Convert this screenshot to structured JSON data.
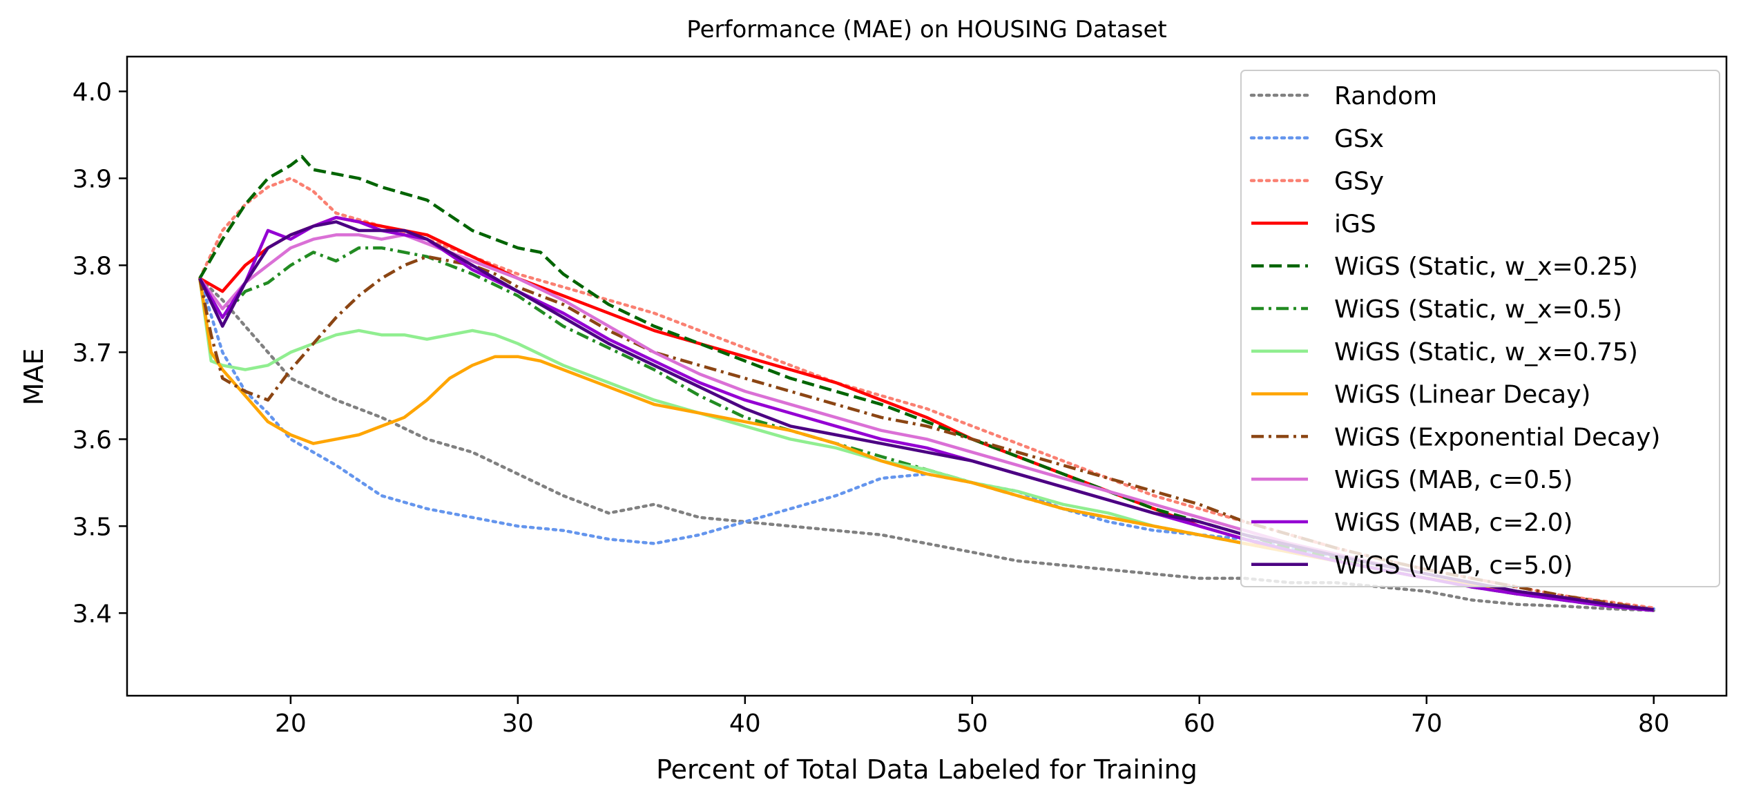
{
  "chart_data": {
    "type": "line",
    "title": "Performance (MAE) on HOUSING Dataset",
    "xlabel": "Percent of Total Data Labeled for Training",
    "ylabel": "MAE",
    "xlim": [
      12.8,
      83.2
    ],
    "ylim": [
      3.305,
      4.04
    ],
    "xticks": [
      20,
      30,
      40,
      50,
      60,
      70,
      80
    ],
    "yticks": [
      3.4,
      3.5,
      3.6,
      3.7,
      3.8,
      3.9,
      4.0
    ],
    "xtick_labels": [
      "20",
      "30",
      "40",
      "50",
      "60",
      "70",
      "80"
    ],
    "ytick_labels": [
      "3.4",
      "3.5",
      "3.6",
      "3.7",
      "3.8",
      "3.9",
      "4.0"
    ],
    "grid": false,
    "legend_position": "top-right",
    "series": [
      {
        "name": "Random",
        "color": "#808080",
        "dash": "dotted",
        "x": [
          16,
          17,
          18,
          19,
          20,
          22,
          24,
          26,
          28,
          30,
          32,
          34,
          36,
          38,
          40,
          42,
          44,
          46,
          48,
          50,
          52,
          54,
          56,
          58,
          60,
          62,
          64,
          66,
          68,
          70,
          72,
          74,
          76,
          78,
          80
        ],
        "y": [
          3.785,
          3.76,
          3.73,
          3.7,
          3.67,
          3.645,
          3.625,
          3.6,
          3.585,
          3.56,
          3.535,
          3.515,
          3.525,
          3.51,
          3.505,
          3.5,
          3.495,
          3.49,
          3.48,
          3.47,
          3.46,
          3.455,
          3.45,
          3.445,
          3.44,
          3.44,
          3.435,
          3.435,
          3.43,
          3.425,
          3.415,
          3.41,
          3.408,
          3.405,
          3.403
        ]
      },
      {
        "name": "GSx",
        "color": "#6495ed",
        "dash": "dotted",
        "x": [
          16,
          17,
          18,
          19,
          20,
          22,
          24,
          26,
          28,
          30,
          32,
          34,
          36,
          38,
          40,
          42,
          44,
          46,
          48,
          50,
          52,
          54,
          56,
          58,
          60,
          62,
          64,
          66,
          68,
          70,
          72,
          74,
          76,
          78,
          80
        ],
        "y": [
          3.785,
          3.7,
          3.655,
          3.63,
          3.6,
          3.57,
          3.535,
          3.52,
          3.51,
          3.5,
          3.495,
          3.485,
          3.48,
          3.49,
          3.505,
          3.52,
          3.535,
          3.555,
          3.56,
          3.55,
          3.54,
          3.52,
          3.505,
          3.495,
          3.49,
          3.485,
          3.475,
          3.465,
          3.455,
          3.445,
          3.435,
          3.425,
          3.418,
          3.41,
          3.405
        ]
      },
      {
        "name": "GSy",
        "color": "#fa8072",
        "dash": "dotted",
        "x": [
          16,
          17,
          18,
          19,
          20,
          21,
          22,
          24,
          26,
          28,
          30,
          32,
          34,
          36,
          38,
          40,
          42,
          44,
          46,
          48,
          50,
          52,
          54,
          56,
          58,
          60,
          62,
          64,
          66,
          68,
          70,
          72,
          74,
          76,
          78,
          80
        ],
        "y": [
          3.785,
          3.84,
          3.87,
          3.89,
          3.9,
          3.885,
          3.86,
          3.845,
          3.83,
          3.81,
          3.79,
          3.775,
          3.76,
          3.745,
          3.725,
          3.705,
          3.685,
          3.665,
          3.65,
          3.635,
          3.615,
          3.595,
          3.575,
          3.555,
          3.535,
          3.52,
          3.505,
          3.49,
          3.475,
          3.462,
          3.45,
          3.44,
          3.43,
          3.42,
          3.413,
          3.406
        ]
      },
      {
        "name": "iGS",
        "color": "#ff0000",
        "dash": "solid",
        "x": [
          16,
          17,
          18,
          19,
          20,
          21,
          22,
          23,
          24,
          26,
          28,
          30,
          32,
          34,
          36,
          38,
          40,
          42,
          44,
          46,
          48,
          50,
          52,
          54,
          56,
          58,
          60,
          62,
          64,
          66,
          68,
          70,
          72,
          74,
          76,
          78,
          80
        ],
        "y": [
          3.785,
          3.77,
          3.8,
          3.82,
          3.835,
          3.845,
          3.855,
          3.85,
          3.845,
          3.835,
          3.81,
          3.785,
          3.765,
          3.745,
          3.725,
          3.71,
          3.695,
          3.68,
          3.665,
          3.645,
          3.625,
          3.6,
          3.58,
          3.56,
          3.54,
          3.52,
          3.5,
          3.485,
          3.47,
          3.46,
          3.45,
          3.44,
          3.432,
          3.425,
          3.418,
          3.41,
          3.404
        ]
      },
      {
        "name": "WiGS (Static, w_x=0.25)",
        "color": "#006400",
        "dash": "dashed",
        "x": [
          16,
          17,
          18,
          19,
          20,
          20.5,
          21,
          22,
          23,
          24,
          26,
          28,
          30,
          31,
          32,
          34,
          36,
          38,
          40,
          42,
          44,
          46,
          48,
          50,
          52,
          54,
          56,
          58,
          60,
          62,
          64,
          66,
          68,
          70,
          72,
          74,
          76,
          78,
          80
        ],
        "y": [
          3.785,
          3.83,
          3.87,
          3.9,
          3.915,
          3.925,
          3.91,
          3.905,
          3.9,
          3.89,
          3.875,
          3.84,
          3.82,
          3.815,
          3.79,
          3.755,
          3.73,
          3.71,
          3.69,
          3.67,
          3.655,
          3.64,
          3.62,
          3.6,
          3.58,
          3.56,
          3.54,
          3.52,
          3.505,
          3.49,
          3.475,
          3.462,
          3.45,
          3.44,
          3.43,
          3.422,
          3.415,
          3.408,
          3.403
        ]
      },
      {
        "name": "WiGS (Static, w_x=0.5)",
        "color": "#228b22",
        "dash": "dashdot",
        "x": [
          16,
          17,
          18,
          19,
          20,
          21,
          22,
          23,
          24,
          26,
          28,
          30,
          32,
          34,
          36,
          38,
          40,
          42,
          44,
          46,
          48,
          50,
          52,
          54,
          56,
          58,
          60,
          62,
          64,
          66,
          68,
          70,
          72,
          74,
          76,
          78,
          80
        ],
        "y": [
          3.785,
          3.74,
          3.77,
          3.78,
          3.8,
          3.815,
          3.805,
          3.82,
          3.82,
          3.81,
          3.79,
          3.765,
          3.73,
          3.705,
          3.68,
          3.65,
          3.625,
          3.61,
          3.595,
          3.58,
          3.565,
          3.55,
          3.535,
          3.52,
          3.51,
          3.5,
          3.49,
          3.48,
          3.47,
          3.46,
          3.45,
          3.44,
          3.432,
          3.425,
          3.418,
          3.41,
          3.404
        ]
      },
      {
        "name": "WiGS (Static, w_x=0.75)",
        "color": "#90ee90",
        "dash": "solid",
        "x": [
          16,
          16.5,
          17,
          18,
          19,
          20,
          21,
          22,
          23,
          24,
          25,
          26,
          27,
          28,
          29,
          30,
          32,
          34,
          36,
          38,
          40,
          42,
          44,
          46,
          48,
          50,
          52,
          54,
          56,
          58,
          60,
          62,
          64,
          66,
          68,
          70,
          72,
          74,
          76,
          78,
          80
        ],
        "y": [
          3.785,
          3.69,
          3.685,
          3.68,
          3.685,
          3.7,
          3.71,
          3.72,
          3.725,
          3.72,
          3.72,
          3.715,
          3.72,
          3.725,
          3.72,
          3.71,
          3.685,
          3.665,
          3.645,
          3.63,
          3.615,
          3.6,
          3.59,
          3.575,
          3.565,
          3.55,
          3.54,
          3.525,
          3.515,
          3.5,
          3.49,
          3.48,
          3.47,
          3.46,
          3.45,
          3.44,
          3.432,
          3.425,
          3.418,
          3.41,
          3.404
        ]
      },
      {
        "name": "WiGS (Linear Decay)",
        "color": "#ffa500",
        "dash": "solid",
        "x": [
          16,
          16.5,
          17,
          18,
          19,
          20,
          21,
          22,
          23,
          24,
          25,
          26,
          27,
          28,
          29,
          30,
          31,
          32,
          34,
          36,
          38,
          40,
          42,
          44,
          46,
          48,
          50,
          52,
          54,
          56,
          58,
          60,
          62,
          64,
          66,
          68,
          70,
          72,
          74,
          76,
          78,
          80
        ],
        "y": [
          3.785,
          3.7,
          3.68,
          3.65,
          3.62,
          3.605,
          3.595,
          3.6,
          3.605,
          3.615,
          3.625,
          3.645,
          3.67,
          3.685,
          3.695,
          3.695,
          3.69,
          3.68,
          3.66,
          3.64,
          3.63,
          3.62,
          3.61,
          3.595,
          3.575,
          3.56,
          3.55,
          3.535,
          3.52,
          3.51,
          3.5,
          3.49,
          3.48,
          3.47,
          3.46,
          3.45,
          3.44,
          3.432,
          3.425,
          3.418,
          3.41,
          3.404
        ]
      },
      {
        "name": "WiGS (Exponential Decay)",
        "color": "#8b4513",
        "dash": "dashdot",
        "x": [
          16,
          16.5,
          17,
          18,
          19,
          20,
          21,
          22,
          23,
          24,
          25,
          26,
          27,
          28,
          29,
          30,
          32,
          34,
          36,
          38,
          40,
          42,
          44,
          46,
          48,
          50,
          52,
          54,
          56,
          58,
          60,
          62,
          64,
          66,
          68,
          70,
          72,
          74,
          76,
          78,
          80
        ],
        "y": [
          3.785,
          3.72,
          3.67,
          3.655,
          3.645,
          3.68,
          3.71,
          3.74,
          3.765,
          3.785,
          3.8,
          3.81,
          3.805,
          3.8,
          3.79,
          3.775,
          3.755,
          3.725,
          3.7,
          3.685,
          3.67,
          3.655,
          3.64,
          3.625,
          3.615,
          3.6,
          3.585,
          3.57,
          3.555,
          3.54,
          3.525,
          3.505,
          3.49,
          3.475,
          3.462,
          3.45,
          3.44,
          3.43,
          3.42,
          3.412,
          3.404
        ]
      },
      {
        "name": "WiGS (MAB, c=0.5)",
        "color": "#da70d6",
        "dash": "solid",
        "x": [
          16,
          17,
          18,
          19,
          20,
          21,
          22,
          23,
          24,
          25,
          26,
          28,
          30,
          32,
          34,
          36,
          38,
          40,
          42,
          44,
          46,
          48,
          50,
          52,
          54,
          56,
          58,
          60,
          62,
          64,
          66,
          68,
          70,
          72,
          74,
          76,
          78,
          80
        ],
        "y": [
          3.785,
          3.75,
          3.78,
          3.8,
          3.82,
          3.83,
          3.835,
          3.835,
          3.83,
          3.835,
          3.825,
          3.805,
          3.785,
          3.76,
          3.73,
          3.7,
          3.675,
          3.655,
          3.64,
          3.625,
          3.61,
          3.6,
          3.585,
          3.57,
          3.555,
          3.54,
          3.525,
          3.51,
          3.495,
          3.48,
          3.468,
          3.456,
          3.445,
          3.435,
          3.425,
          3.418,
          3.41,
          3.404
        ]
      },
      {
        "name": "WiGS (MAB, c=2.0)",
        "color": "#9400d3",
        "dash": "solid",
        "x": [
          16,
          17,
          18,
          18.5,
          19,
          20,
          21,
          22,
          23,
          24,
          25,
          26,
          28,
          30,
          32,
          34,
          36,
          38,
          40,
          42,
          44,
          46,
          48,
          50,
          52,
          54,
          56,
          58,
          60,
          62,
          64,
          66,
          68,
          70,
          72,
          74,
          76,
          78,
          80
        ],
        "y": [
          3.785,
          3.74,
          3.78,
          3.81,
          3.84,
          3.83,
          3.845,
          3.855,
          3.85,
          3.84,
          3.835,
          3.83,
          3.795,
          3.77,
          3.745,
          3.715,
          3.69,
          3.665,
          3.645,
          3.63,
          3.615,
          3.6,
          3.59,
          3.575,
          3.56,
          3.545,
          3.53,
          3.515,
          3.5,
          3.485,
          3.472,
          3.46,
          3.45,
          3.44,
          3.43,
          3.422,
          3.415,
          3.408,
          3.403
        ]
      },
      {
        "name": "WiGS (MAB, c=5.0)",
        "color": "#4b0082",
        "dash": "solid",
        "x": [
          16,
          17,
          18,
          19,
          20,
          21,
          22,
          23,
          24,
          25,
          26,
          28,
          30,
          32,
          34,
          36,
          38,
          40,
          42,
          44,
          46,
          48,
          50,
          52,
          54,
          56,
          58,
          60,
          62,
          64,
          66,
          68,
          70,
          72,
          74,
          76,
          78,
          80
        ],
        "y": [
          3.785,
          3.73,
          3.78,
          3.82,
          3.835,
          3.845,
          3.85,
          3.84,
          3.84,
          3.84,
          3.83,
          3.8,
          3.77,
          3.74,
          3.71,
          3.685,
          3.66,
          3.635,
          3.615,
          3.605,
          3.595,
          3.585,
          3.575,
          3.56,
          3.545,
          3.53,
          3.515,
          3.505,
          3.49,
          3.478,
          3.466,
          3.455,
          3.445,
          3.435,
          3.425,
          3.418,
          3.41,
          3.404
        ]
      }
    ]
  }
}
